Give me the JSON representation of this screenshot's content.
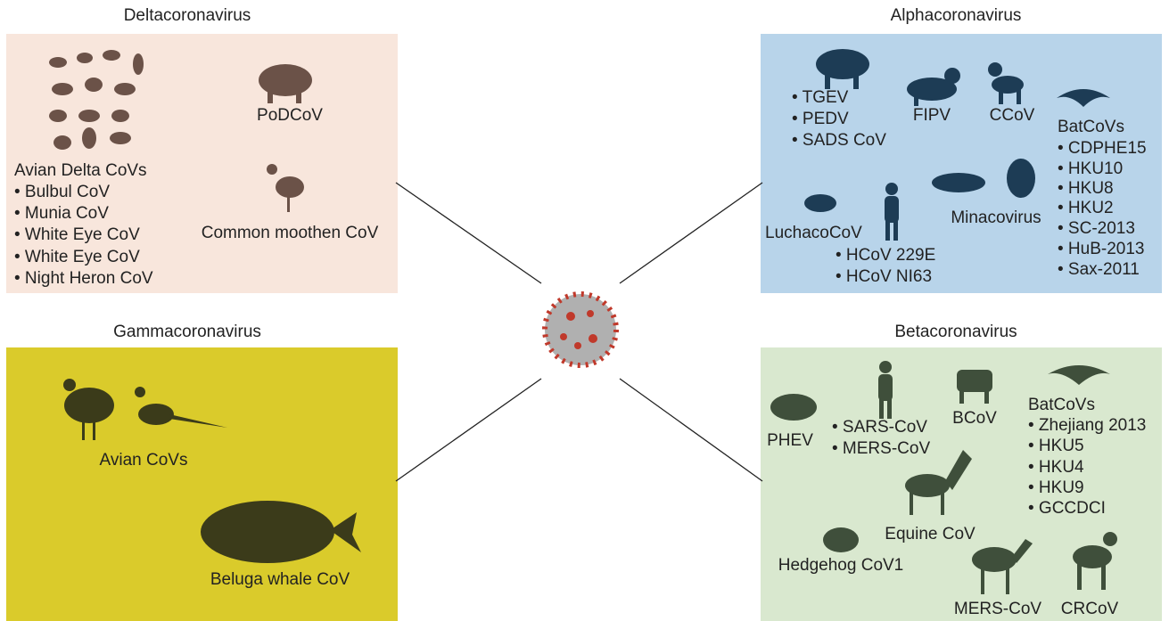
{
  "panels": [
    {
      "title": "Deltacoronavirus",
      "labels": [
        "Avian Delta CoVs",
        "• Bulbul CoV",
        "• Munia CoV",
        "• White Eye CoV",
        "• White Eye CoV",
        "• Night Heron CoV",
        "PoDCoV",
        "Common moothen CoV"
      ]
    },
    {
      "title": "Alphacoronavirus",
      "labels": [
        "• TGEV",
        "• PEDV",
        "• SADS CoV",
        "FIPV",
        "CCoV",
        "BatCoVs",
        "• CDPHE15",
        "• HKU10",
        "• HKU8",
        "• HKU2",
        "• SC-2013",
        "• HuB-2013",
        "• Sax-2011",
        "Minacovirus",
        "LuchacoCoV",
        "• HCoV 229E",
        "• HCoV NI63"
      ]
    },
    {
      "title": "Gammacoronavirus",
      "labels": [
        "Avian CoVs",
        "Beluga whale CoV"
      ]
    },
    {
      "title": "Betacoronavirus",
      "labels": [
        "PHEV",
        "• SARS-CoV",
        "• MERS-CoV",
        "BCoV",
        "BatCoVs",
        "• Zhejiang 2013",
        "• HKU5",
        "• HKU4",
        "• HKU9",
        "• GCCDCI",
        "Equine CoV",
        "Hedgehog CoV1",
        "MERS-CoV",
        "CRCoV"
      ]
    }
  ]
}
